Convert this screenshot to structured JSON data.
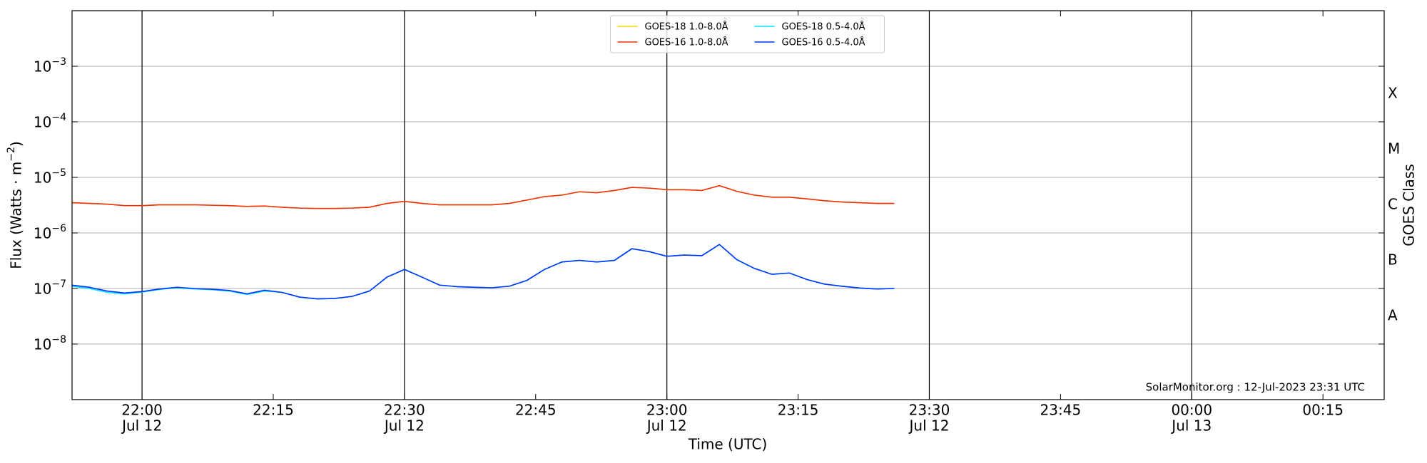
{
  "chart_data": {
    "type": "line",
    "xlabel": "Time (UTC)",
    "ylabel": "Flux (Watts · m^−2)",
    "y2label": "GOES Class",
    "annotation": "SolarMonitor.org : 12-Jul-2023 23:31 UTC",
    "log_y": true,
    "grid": true,
    "xgrid": true,
    "legend": "upper center",
    "xlim": [
      "Jul 12 21:52",
      "Jul 13 00:22"
    ],
    "ylim": [
      1e-09,
      0.01
    ],
    "y2lim": [
      1e-09,
      0.01
    ],
    "yticks": [
      {
        "value": 1e-08,
        "label": "10^−8"
      },
      {
        "value": 1e-07,
        "label": "10^−7"
      },
      {
        "value": 1e-06,
        "label": "10^−6"
      },
      {
        "value": 1e-05,
        "label": "10^−5"
      },
      {
        "value": 0.0001,
        "label": "10^−4"
      },
      {
        "value": 0.001,
        "label": "10^−3"
      }
    ],
    "y2ticks": [
      {
        "value": 3.16e-08,
        "label": "A"
      },
      {
        "value": 3.16e-07,
        "label": "B"
      },
      {
        "value": 3.16e-06,
        "label": "C"
      },
      {
        "value": 3.16e-05,
        "label": "M"
      },
      {
        "value": 0.000316,
        "label": "X"
      }
    ],
    "xticks": [
      {
        "value": "Jul 12 22:00",
        "label": "22:00",
        "date": "Jul 12"
      },
      {
        "value": "Jul 12 22:15",
        "label": "22:15"
      },
      {
        "value": "Jul 12 22:30",
        "label": "22:30",
        "date": "Jul 12"
      },
      {
        "value": "Jul 12 22:45",
        "label": "22:45"
      },
      {
        "value": "Jul 12 23:00",
        "label": "23:00",
        "date": "Jul 12"
      },
      {
        "value": "Jul 12 23:15",
        "label": "23:15"
      },
      {
        "value": "Jul 12 23:30",
        "label": "23:30",
        "date": "Jul 12"
      },
      {
        "value": "Jul 12 23:45",
        "label": "23:45"
      },
      {
        "value": "Jul 13 00:00",
        "label": "00:00",
        "date": "Jul 13"
      },
      {
        "value": "Jul 13 00:15",
        "label": "00:15"
      }
    ],
    "x": [
      "Jul 12 21:52",
      "Jul 12 21:54",
      "Jul 12 21:56",
      "Jul 12 21:58",
      "Jul 12 22:00",
      "Jul 12 22:02",
      "Jul 12 22:04",
      "Jul 12 22:06",
      "Jul 12 22:08",
      "Jul 12 22:10",
      "Jul 12 22:12",
      "Jul 12 22:14",
      "Jul 12 22:16",
      "Jul 12 22:18",
      "Jul 12 22:20",
      "Jul 12 22:22",
      "Jul 12 22:24",
      "Jul 12 22:26",
      "Jul 12 22:28",
      "Jul 12 22:30",
      "Jul 12 22:32",
      "Jul 12 22:34",
      "Jul 12 22:36",
      "Jul 12 22:38",
      "Jul 12 22:40",
      "Jul 12 22:42",
      "Jul 12 22:44",
      "Jul 12 22:46",
      "Jul 12 22:48",
      "Jul 12 22:50",
      "Jul 12 22:52",
      "Jul 12 22:54",
      "Jul 12 22:56",
      "Jul 12 22:58",
      "Jul 12 23:00",
      "Jul 12 23:02",
      "Jul 12 23:04",
      "Jul 12 23:06",
      "Jul 12 23:08",
      "Jul 12 23:10",
      "Jul 12 23:12",
      "Jul 12 23:14",
      "Jul 12 23:16",
      "Jul 12 23:18",
      "Jul 12 23:20",
      "Jul 12 23:22",
      "Jul 12 23:24",
      "Jul 12 23:26"
    ],
    "series": [
      {
        "name": "GOES-18 1.0-8.0Å",
        "color": "#ffd700",
        "values": [
          3.5e-06,
          3.4e-06,
          3.3e-06,
          3.1e-06,
          3.1e-06,
          3.2e-06,
          3.2e-06,
          3.2e-06,
          3.15e-06,
          3.1e-06,
          3e-06,
          3.05e-06,
          2.9e-06,
          2.8e-06,
          2.75e-06,
          2.75e-06,
          2.8e-06,
          2.9e-06,
          3.4e-06,
          3.7e-06,
          3.4e-06,
          3.2e-06,
          3.2e-06,
          3.2e-06,
          3.2e-06,
          3.4e-06,
          3.9e-06,
          4.5e-06,
          4.8e-06,
          5.5e-06,
          5.3e-06,
          5.8e-06,
          6.6e-06,
          6.4e-06,
          6e-06,
          6e-06,
          5.8e-06,
          7.1e-06,
          5.6e-06,
          4.8e-06,
          4.4e-06,
          4.4e-06,
          4.1e-06,
          3.8e-06,
          3.6e-06,
          3.5e-06,
          3.4e-06,
          3.4e-06
        ]
      },
      {
        "name": "GOES-16 1.0-8.0Å",
        "color": "#f03010",
        "values": [
          3.5e-06,
          3.4e-06,
          3.3e-06,
          3.1e-06,
          3.1e-06,
          3.2e-06,
          3.2e-06,
          3.2e-06,
          3.15e-06,
          3.1e-06,
          3e-06,
          3.05e-06,
          2.9e-06,
          2.8e-06,
          2.75e-06,
          2.75e-06,
          2.8e-06,
          2.9e-06,
          3.4e-06,
          3.7e-06,
          3.4e-06,
          3.2e-06,
          3.2e-06,
          3.2e-06,
          3.2e-06,
          3.4e-06,
          3.9e-06,
          4.5e-06,
          4.8e-06,
          5.5e-06,
          5.3e-06,
          5.8e-06,
          6.6e-06,
          6.4e-06,
          6e-06,
          6e-06,
          5.8e-06,
          7.1e-06,
          5.6e-06,
          4.8e-06,
          4.4e-06,
          4.4e-06,
          4.1e-06,
          3.8e-06,
          3.6e-06,
          3.5e-06,
          3.4e-06,
          3.4e-06
        ]
      },
      {
        "name": "GOES-18 0.5-4.0Å",
        "color": "#00e5ff",
        "values": [
          1.1e-07,
          1e-07,
          8.5e-08,
          8e-08,
          8.6e-08,
          9.6e-08,
          1.03e-07,
          9.8e-08,
          9.5e-08,
          9e-08,
          7.8e-08,
          9e-08,
          8.5e-08,
          7e-08,
          6.5e-08,
          6.6e-08,
          7.2e-08,
          9e-08,
          1.6e-07,
          2.2e-07,
          1.6e-07,
          1.15e-07,
          1.08e-07,
          1.05e-07,
          1.03e-07,
          1.1e-07,
          1.4e-07,
          2.2e-07,
          3e-07,
          3.2e-07,
          3e-07,
          3.2e-07,
          5.2e-07,
          4.6e-07,
          3.8e-07,
          4e-07,
          3.9e-07,
          6.2e-07,
          3.3e-07,
          2.3e-07,
          1.8e-07,
          1.9e-07,
          1.45e-07,
          1.2e-07,
          1.1e-07,
          1.02e-07,
          9.8e-08,
          1e-07
        ]
      },
      {
        "name": "GOES-16 0.5-4.0Å",
        "color": "#0033ff",
        "values": [
          1.15e-07,
          1.05e-07,
          9e-08,
          8.3e-08,
          8.8e-08,
          9.8e-08,
          1.05e-07,
          1e-07,
          9.7e-08,
          9.2e-08,
          8e-08,
          9.3e-08,
          8.5e-08,
          7e-08,
          6.5e-08,
          6.6e-08,
          7.2e-08,
          9e-08,
          1.6e-07,
          2.2e-07,
          1.6e-07,
          1.15e-07,
          1.08e-07,
          1.05e-07,
          1.03e-07,
          1.1e-07,
          1.4e-07,
          2.2e-07,
          3e-07,
          3.2e-07,
          3e-07,
          3.2e-07,
          5.2e-07,
          4.6e-07,
          3.8e-07,
          4e-07,
          3.9e-07,
          6.2e-07,
          3.3e-07,
          2.3e-07,
          1.8e-07,
          1.9e-07,
          1.45e-07,
          1.2e-07,
          1.1e-07,
          1.02e-07,
          9.8e-08,
          1e-07
        ]
      }
    ]
  }
}
